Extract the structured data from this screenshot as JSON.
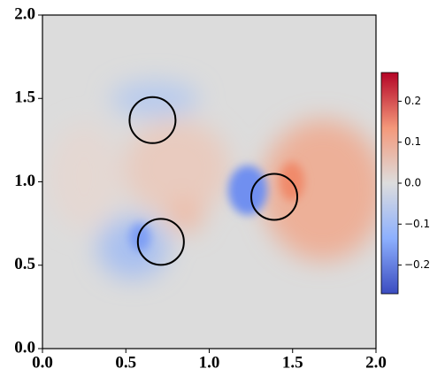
{
  "chart_data": {
    "type": "field",
    "xlim": [
      0,
      2
    ],
    "ylim": [
      0,
      2
    ],
    "xticks": [
      {
        "value": 0,
        "label": "0.0"
      },
      {
        "value": 0.5,
        "label": "0.5"
      },
      {
        "value": 1,
        "label": "1.0"
      },
      {
        "value": 1.5,
        "label": "1.5"
      },
      {
        "value": 2,
        "label": "2.0"
      }
    ],
    "yticks": [
      {
        "value": 0,
        "label": "0.0"
      },
      {
        "value": 0.5,
        "label": "0.5"
      },
      {
        "value": 1,
        "label": "1.0"
      },
      {
        "value": 1.5,
        "label": "1.5"
      },
      {
        "value": 2,
        "label": "2.0"
      }
    ],
    "colormap": "coolwarm",
    "clim": [
      -0.27,
      0.27
    ],
    "cticks": [
      {
        "value": -0.2,
        "label": "−0.2"
      },
      {
        "value": -0.1,
        "label": "−0.1"
      },
      {
        "value": 0,
        "label": "0.0"
      },
      {
        "value": 0.1,
        "label": "0.1"
      },
      {
        "value": 0.2,
        "label": "0.2"
      }
    ],
    "circles": [
      {
        "x": 0.66,
        "y": 1.37,
        "r": 0.138
      },
      {
        "x": 0.71,
        "y": 0.64,
        "r": 0.138
      },
      {
        "x": 1.39,
        "y": 0.91,
        "r": 0.138
      }
    ]
  }
}
